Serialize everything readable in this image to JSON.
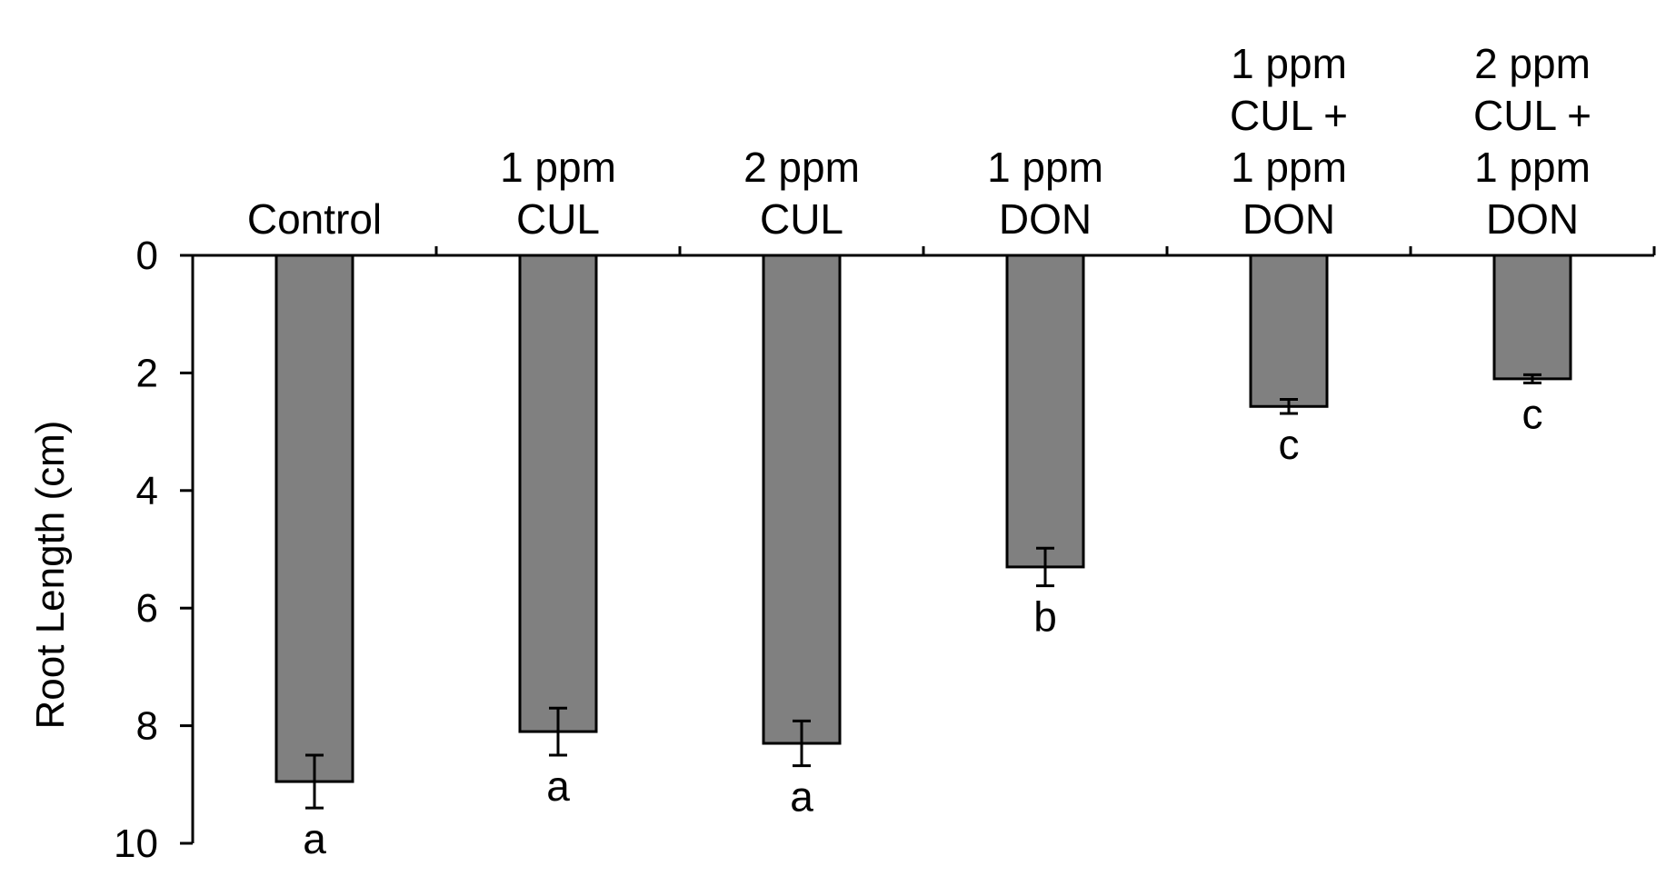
{
  "chart_data": {
    "type": "bar",
    "orientation": "inverted-y",
    "categories": [
      [
        "Control"
      ],
      [
        "1 ppm",
        "CUL"
      ],
      [
        "2 ppm",
        "CUL"
      ],
      [
        "1 ppm",
        "DON"
      ],
      [
        "1 ppm",
        "CUL +",
        "1 ppm",
        "DON"
      ],
      [
        "2 ppm",
        "CUL +",
        "1 ppm",
        "DON"
      ]
    ],
    "values": [
      8.95,
      8.1,
      8.3,
      5.3,
      2.57,
      2.1
    ],
    "errors": [
      0.45,
      0.4,
      0.38,
      0.32,
      0.12,
      0.07
    ],
    "significance": [
      "a",
      "a",
      "a",
      "b",
      "c",
      "c"
    ],
    "ylabel": "Root Length (cm)",
    "xlabel": "",
    "title": "",
    "ylim": [
      0,
      10
    ],
    "yticks": [
      "0",
      "2",
      "4",
      "6",
      "8",
      "10"
    ],
    "y_inverted": true,
    "x_axis_position": "top",
    "grid": false,
    "colors": {
      "bar": "#808080",
      "outline": "#000000"
    }
  }
}
